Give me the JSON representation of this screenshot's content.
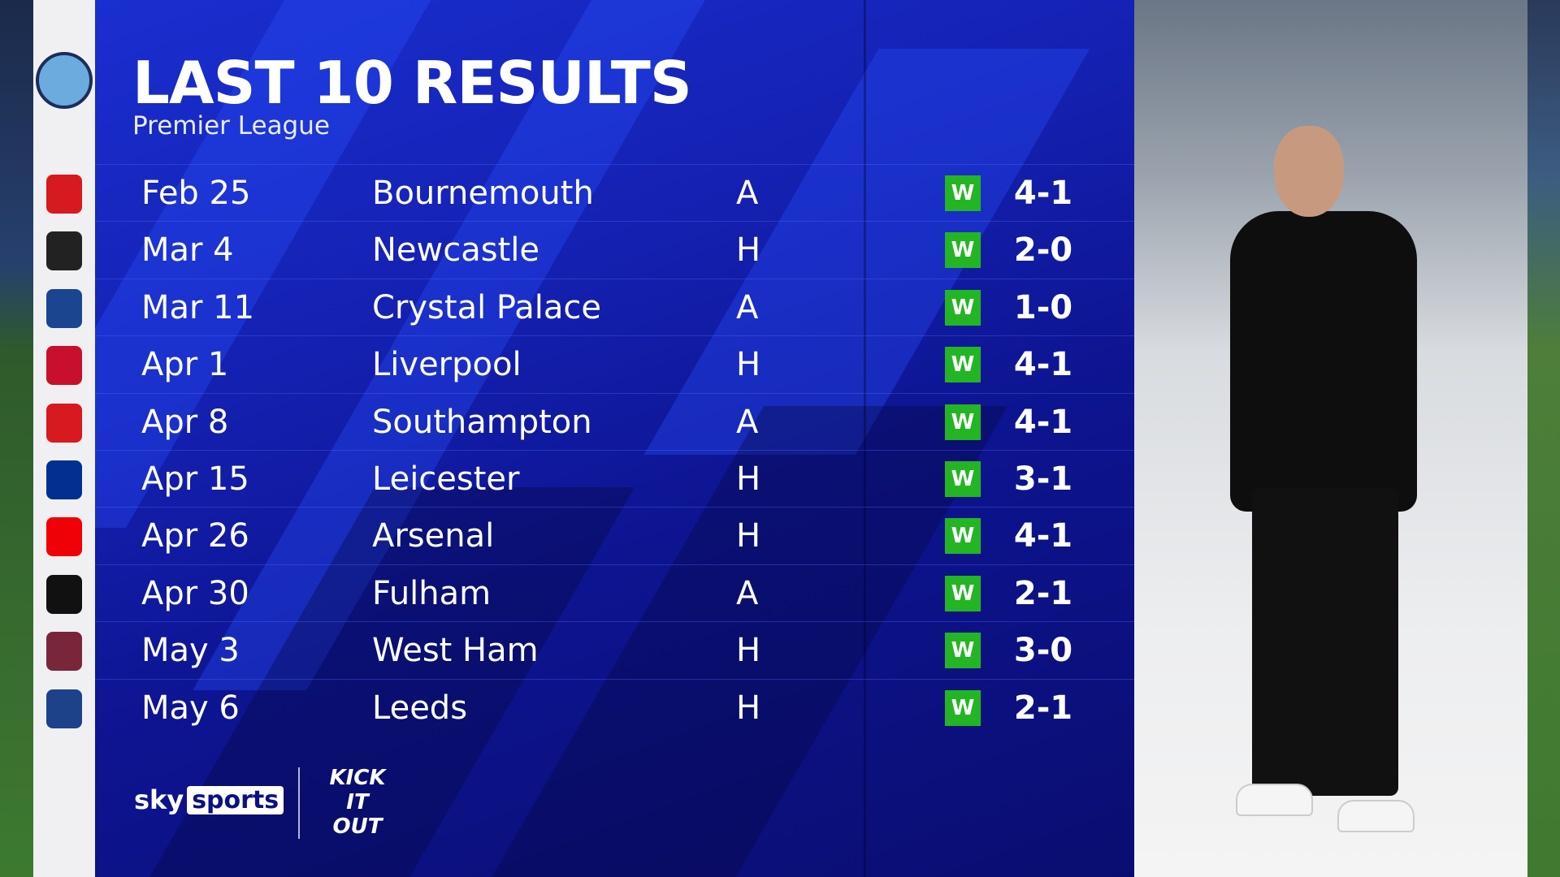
{
  "header": {
    "title": "LAST 10 RESULTS",
    "subtitle": "Premier League"
  },
  "team_crest": "manchester-city-crest",
  "results": [
    {
      "date": "Feb 25",
      "opponent": "Bournemouth",
      "venue": "A",
      "result": "W",
      "score": "4-1",
      "crest_color": "#d71920"
    },
    {
      "date": "Mar 4",
      "opponent": "Newcastle",
      "venue": "H",
      "result": "W",
      "score": "2-0",
      "crest_color": "#222222"
    },
    {
      "date": "Mar 11",
      "opponent": "Crystal Palace",
      "venue": "A",
      "result": "W",
      "score": "1-0",
      "crest_color": "#1b458f"
    },
    {
      "date": "Apr 1",
      "opponent": "Liverpool",
      "venue": "H",
      "result": "W",
      "score": "4-1",
      "crest_color": "#c8102e"
    },
    {
      "date": "Apr 8",
      "opponent": "Southampton",
      "venue": "A",
      "result": "W",
      "score": "4-1",
      "crest_color": "#d71920"
    },
    {
      "date": "Apr 15",
      "opponent": "Leicester",
      "venue": "H",
      "result": "W",
      "score": "3-1",
      "crest_color": "#003090"
    },
    {
      "date": "Apr 26",
      "opponent": "Arsenal",
      "venue": "H",
      "result": "W",
      "score": "4-1",
      "crest_color": "#ef0107"
    },
    {
      "date": "Apr 30",
      "opponent": "Fulham",
      "venue": "A",
      "result": "W",
      "score": "2-1",
      "crest_color": "#111111"
    },
    {
      "date": "May 3",
      "opponent": "West Ham",
      "venue": "H",
      "result": "W",
      "score": "3-0",
      "crest_color": "#7a263a"
    },
    {
      "date": "May 6",
      "opponent": "Leeds",
      "venue": "H",
      "result": "W",
      "score": "2-1",
      "crest_color": "#1d428a"
    }
  ],
  "colors": {
    "win": "#23b523",
    "panel": "#1420b0"
  },
  "branding": {
    "sky": "sky",
    "sports": "sports",
    "kick_it_out": "KICK IT OUT"
  }
}
